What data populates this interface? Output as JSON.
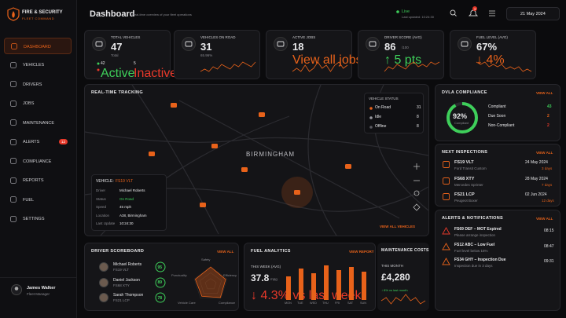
{
  "sidebar": {
    "brand": "FIRE & SECURITY",
    "tagline": "FLEET COMMAND",
    "nav": [
      {
        "label": "DASHBOARD"
      },
      {
        "label": "VEHICLES"
      },
      {
        "label": "DRIVERS"
      },
      {
        "label": "JOBS"
      },
      {
        "label": "MAINTENANCE"
      },
      {
        "label": "ALERTS",
        "badge": "12"
      },
      {
        "label": "COMPLIANCE"
      },
      {
        "label": "REPORTS"
      },
      {
        "label": "FUEL"
      },
      {
        "label": "SETTINGS"
      }
    ],
    "user": {
      "name": "James Walker",
      "role": "Fleet Manager"
    }
  },
  "header": {
    "title": "Dashboard",
    "subtitle": "Real-time overview of your fleet operations",
    "live": "Live",
    "updated": "Last updated: 10:24:30",
    "notifications": "3",
    "date": "21 May 2024"
  },
  "kpis": [
    {
      "label": "TOTAL VEHICLES",
      "value": "47",
      "sub": "Total",
      "active": "42",
      "active_label": "Active",
      "inactive": "5",
      "inactive_label": "Inactive"
    },
    {
      "label": "VEHICLES ON ROAD",
      "value": "31",
      "sub": "65.96%",
      "trend": [
        5,
        6,
        5,
        7,
        6,
        8,
        7,
        6,
        8,
        7,
        9,
        8,
        7,
        9
      ]
    },
    {
      "label": "ACTIVE JOBS",
      "value": "18",
      "sub": "View all jobs",
      "trend": [
        6,
        7,
        6,
        8,
        6,
        7,
        9,
        7,
        8,
        6,
        8,
        9,
        7,
        8
      ]
    },
    {
      "label": "DRIVER SCORE (AVG)",
      "value": "86",
      "unit": "/100",
      "sub": "↑ 5 pts",
      "trend": [
        5,
        7,
        6,
        8,
        7,
        6,
        8,
        9,
        7,
        8,
        7,
        9,
        8,
        9
      ]
    },
    {
      "label": "FUEL LEVEL (AVG)",
      "value": "67%",
      "sub": "↓ 4%",
      "trend": [
        9,
        8,
        9,
        7,
        8,
        7,
        8,
        6,
        7,
        6,
        7,
        5,
        6,
        5
      ]
    }
  ],
  "tracking": {
    "title": "REAL-TIME TRACKING",
    "city": "BIRMINGHAM",
    "status_title": "VEHICLE STATUS",
    "status": [
      {
        "label": "On Road",
        "count": "31"
      },
      {
        "label": "Idle",
        "count": "8"
      },
      {
        "label": "Offline",
        "count": "8"
      }
    ],
    "vehicle": {
      "title": "VEHICLE:",
      "id": "FS19 VLT",
      "fields": [
        {
          "label": "Driver",
          "value": "Michael Roberts"
        },
        {
          "label": "Status",
          "value": "On Road"
        },
        {
          "label": "Speed",
          "value": "45 mph"
        },
        {
          "label": "Location",
          "value": "A38, Birmingham"
        },
        {
          "label": "Last Update",
          "value": "10:24:30"
        }
      ]
    },
    "view_all": "VIEW ALL VEHICLES"
  },
  "compliance": {
    "title": "DVLA COMPLIANCE",
    "link": "VIEW ALL",
    "percent": {
      "value": 92,
      "label": "92%"
    },
    "caption": "Compliant",
    "items": [
      {
        "label": "Compliant",
        "count": "43"
      },
      {
        "label": "Due Soon",
        "count": "2"
      },
      {
        "label": "Non-Compliant",
        "count": "2"
      }
    ]
  },
  "inspections": {
    "title": "NEXT INSPECTIONS",
    "link": "VIEW ALL",
    "rows": [
      {
        "id": "FS19 VLT",
        "model": "Ford Transit Custom",
        "date": "24 May 2024",
        "days": "3 days"
      },
      {
        "id": "FS68 XTY",
        "model": "Mercedes Sprinter",
        "date": "28 May 2024",
        "days": "7 days"
      },
      {
        "id": "FS21 LCP",
        "model": "Peugeot Boxer",
        "date": "02 Jun 2024",
        "days": "12 days"
      }
    ]
  },
  "alerts": {
    "title": "ALERTS & NOTIFICATIONS",
    "link": "VIEW ALL",
    "rows": [
      {
        "title": "FS69 DEF – MOT Expired",
        "detail": "Please arrange inspection",
        "time": "08:15"
      },
      {
        "title": "FS12 ABC – Low Fuel",
        "detail": "Fuel level below 15%",
        "time": "08:47"
      },
      {
        "title": "FS34 GHY – Inspection Due",
        "detail": "Inspection due in 3 days",
        "time": "09:31"
      }
    ]
  },
  "scoreboard": {
    "title": "DRIVER SCOREBOARD",
    "link": "VIEW ALL",
    "rows": [
      {
        "name": "Michael Roberts",
        "vehicle": "FS19 VLT",
        "score": "95"
      },
      {
        "name": "Daniel Jackson",
        "vehicle": "FS68 XTY",
        "score": "89"
      },
      {
        "name": "Sarah Thompson",
        "vehicle": "FS21 LCP",
        "score": "78"
      }
    ],
    "radar": {
      "axes": [
        "Safety",
        "Efficiency",
        "Compliance",
        "Vehicle Care",
        "Punctuality"
      ],
      "values": [
        90,
        82,
        86,
        78,
        84
      ]
    }
  },
  "fuel": {
    "title": "FUEL ANALYTICS",
    "link": "VIEW REPORT",
    "period": "THIS WEEK (AVG)",
    "value": "37.8",
    "unit": "mpg",
    "change": "↓ 4.3% vs last week",
    "chart_data": {
      "type": "bar",
      "categories": [
        "MON",
        "TUE",
        "WED",
        "THU",
        "FRI",
        "SAT",
        "SUN"
      ],
      "values": [
        30,
        40,
        34,
        44,
        38,
        42,
        36
      ],
      "color": "#e8621a"
    }
  },
  "maintenance": {
    "title": "MAINTENANCE COSTS",
    "period": "THIS MONTH",
    "value": "£4,280",
    "change": "↓ 8% vs last month",
    "trend": [
      6,
      7,
      5,
      7,
      6,
      8,
      6,
      7,
      5,
      6
    ]
  }
}
